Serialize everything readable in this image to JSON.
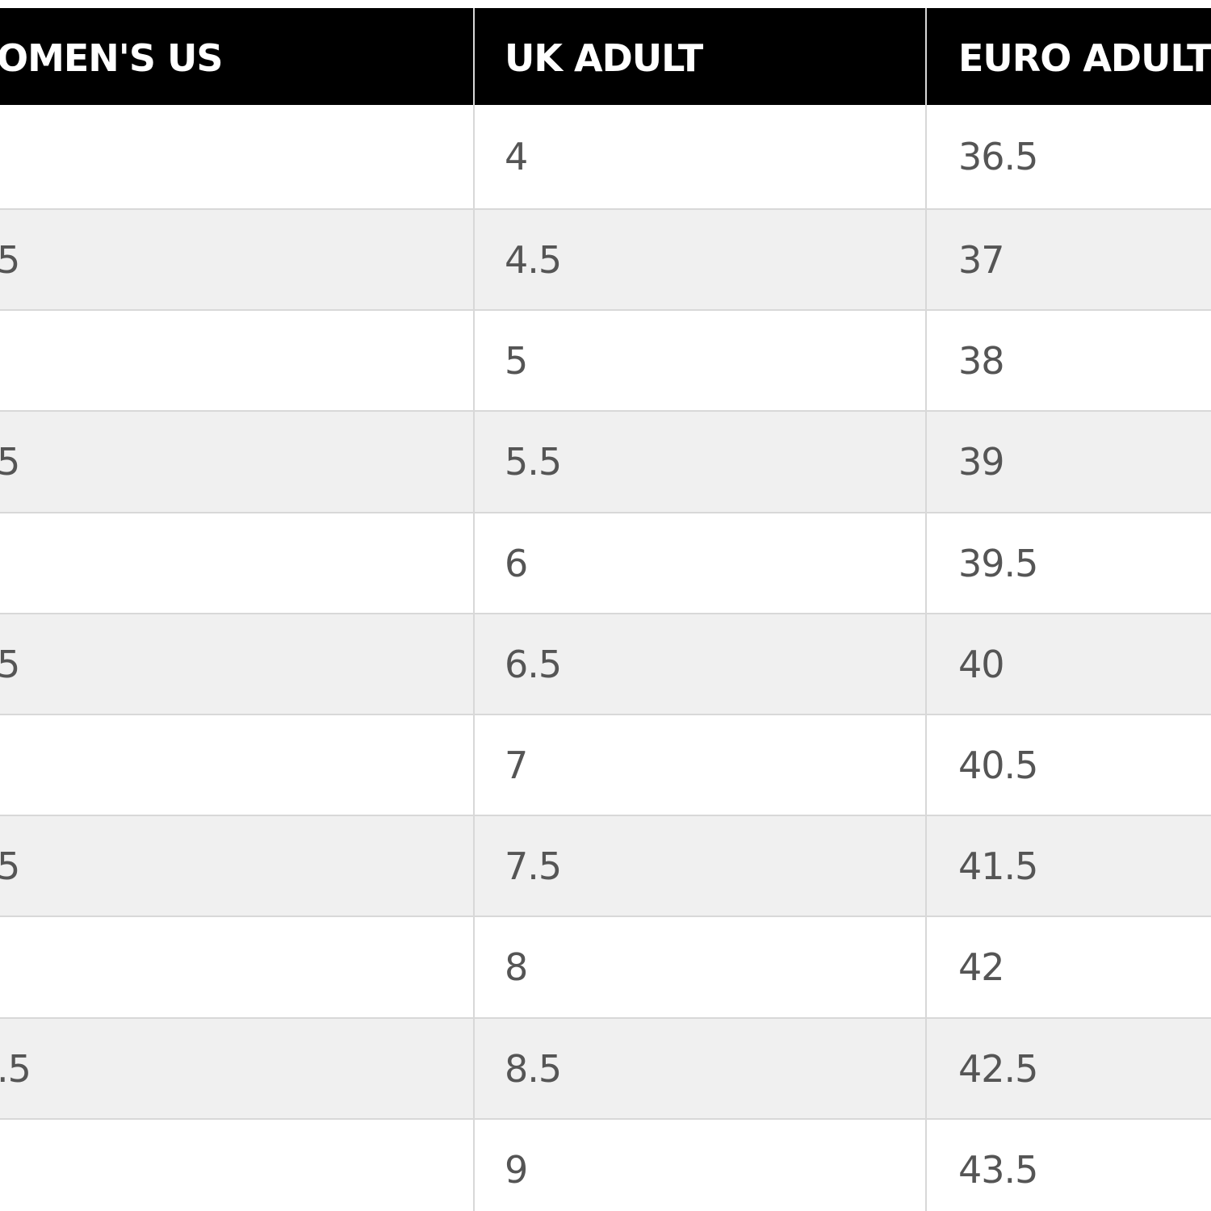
{
  "table": {
    "header": [
      "OMEN'S US",
      "UK ADULT",
      "EURO ADULT"
    ],
    "rows": [
      {
        "uk": "4",
        "euro": "36.5"
      },
      {
        "us": "5",
        "uk": "4.5",
        "euro": "37"
      },
      {
        "uk": "5",
        "euro": "38"
      },
      {
        "us": "5",
        "uk": "5.5",
        "euro": "39"
      },
      {
        "uk": "6",
        "euro": "39.5"
      },
      {
        "us": "5",
        "uk": "6.5",
        "euro": "40"
      },
      {
        "uk": "7",
        "euro": "40.5"
      },
      {
        "us": "5",
        "uk": "7.5",
        "euro": "41.5"
      },
      {
        "uk": "8",
        "euro": "42"
      },
      {
        "us": ".5",
        "uk": "8.5",
        "euro": "42.5"
      },
      {
        "uk": "9",
        "euro": "43.5"
      }
    ]
  }
}
